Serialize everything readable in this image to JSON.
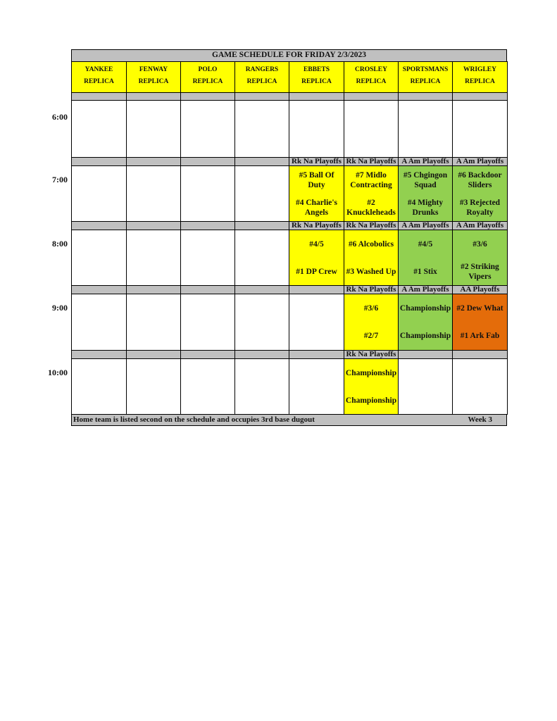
{
  "title": "GAME SCHEDULE FOR FRIDAY 2/3/2023",
  "fields": [
    {
      "name": "YANKEE",
      "sub": "REPLICA"
    },
    {
      "name": "FENWAY",
      "sub": "REPLICA"
    },
    {
      "name": "POLO",
      "sub": "REPLICA"
    },
    {
      "name": "RANGERS",
      "sub": "REPLICA"
    },
    {
      "name": "EBBETS",
      "sub": "REPLICA"
    },
    {
      "name": "CROSLEY",
      "sub": "REPLICA"
    },
    {
      "name": "SPORTSMANS",
      "sub": "REPLICA"
    },
    {
      "name": "WRIGLEY",
      "sub": "REPLICA"
    }
  ],
  "colors": {
    "yellow": "#ffff00",
    "green": "#92d050",
    "orange": "#e46c0a",
    "gray": "#c0c0c0",
    "white": "#ffffff"
  },
  "slots": [
    {
      "time": "6:00",
      "cells": [
        {},
        {},
        {},
        {},
        {},
        {},
        {},
        {}
      ]
    },
    {
      "time": "7:00",
      "cells": [
        {},
        {},
        {},
        {},
        {
          "label": "Rk Na Playoffs",
          "color": "yellow",
          "games": [
            "#5 Ball Of Duty",
            "#4 Charlie's Angels"
          ]
        },
        {
          "label": "Rk Na Playoffs",
          "color": "yellow",
          "games": [
            "#7 Midlo Contracting",
            "#2 Knuckleheads"
          ]
        },
        {
          "label": "A Am Playoffs",
          "color": "green",
          "games": [
            "#5 Chgingon Squad",
            "#4 Mighty Drunks"
          ]
        },
        {
          "label": "A Am Playoffs",
          "color": "green",
          "games": [
            "#6 Backdoor Sliders",
            "#3 Rejected Royalty"
          ]
        }
      ]
    },
    {
      "time": "8:00",
      "cells": [
        {},
        {},
        {},
        {},
        {
          "label": "Rk Na Playoffs",
          "color": "yellow",
          "games": [
            "#4/5",
            "#1 DP Crew"
          ]
        },
        {
          "label": "Rk Na Playoffs",
          "color": "yellow",
          "games": [
            "#6 Alcobolics",
            "#3 Washed Up"
          ]
        },
        {
          "label": "A Am Playoffs",
          "color": "green",
          "games": [
            "#4/5",
            "#1 Stix"
          ]
        },
        {
          "label": "A Am Playoffs",
          "color": "green",
          "games": [
            "#3/6",
            "#2 Striking Vipers"
          ]
        }
      ]
    },
    {
      "time": "9:00",
      "cells": [
        {},
        {},
        {},
        {},
        {},
        {
          "label": "Rk Na Playoffs",
          "color": "yellow",
          "games": [
            "#3/6",
            "#2/7"
          ]
        },
        {
          "label": "A Am Playoffs",
          "color": "green",
          "games": [
            "Championship",
            "Championship"
          ]
        },
        {
          "label": "AA Playoffs",
          "color": "orange",
          "games": [
            "#2 Dew What",
            "#1 Ark Fab"
          ]
        }
      ]
    },
    {
      "time": "10:00",
      "cells": [
        {},
        {},
        {},
        {},
        {},
        {
          "label": "Rk Na Playoffs",
          "color": "yellow",
          "games": [
            "Championship",
            "Championship"
          ]
        },
        {},
        {}
      ]
    }
  ],
  "footer": {
    "note": "Home team is listed second on the schedule and occupies 3rd base dugout",
    "week": "Week 3"
  }
}
